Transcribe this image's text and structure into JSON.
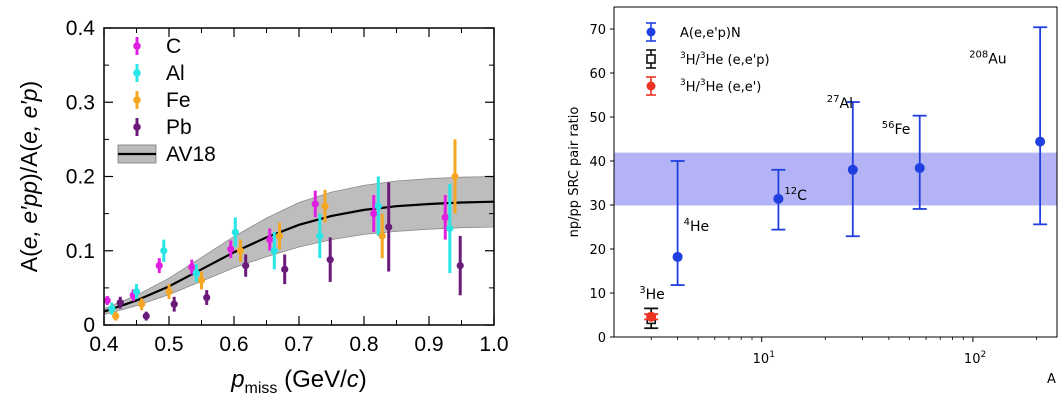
{
  "chart_data": [
    {
      "type": "scatter",
      "title": "",
      "xlabel": {
        "main": "p",
        "sub": "miss",
        "unit": "(GeV/",
        "unit_var": "c",
        "unit_end": ")"
      },
      "ylabel": {
        "p1": "A(",
        "v1": "e, e′pp",
        "p2": ")/A(",
        "v2": "e, e′p",
        "p3": ")"
      },
      "xlim": [
        0.4,
        1.0
      ],
      "ylim": [
        0,
        0.4
      ],
      "xticks": [
        "0.4",
        "0.5",
        "0.6",
        "0.7",
        "0.8",
        "0.9",
        "1.0"
      ],
      "yticks": [
        "0",
        "0.1",
        "0.2",
        "0.3",
        "0.4"
      ],
      "legend_position": "top-left",
      "grid": false,
      "series": [
        {
          "name": "C",
          "color": "#e020e0",
          "points": [
            {
              "x": 0.405,
              "y": 0.033,
              "err": 0.006
            },
            {
              "x": 0.445,
              "y": 0.04,
              "err": 0.008
            },
            {
              "x": 0.485,
              "y": 0.08,
              "err": 0.01
            },
            {
              "x": 0.535,
              "y": 0.078,
              "err": 0.01
            },
            {
              "x": 0.595,
              "y": 0.102,
              "err": 0.012
            },
            {
              "x": 0.655,
              "y": 0.115,
              "err": 0.015
            },
            {
              "x": 0.725,
              "y": 0.163,
              "err": 0.018
            },
            {
              "x": 0.815,
              "y": 0.15,
              "err": 0.025
            },
            {
              "x": 0.925,
              "y": 0.145,
              "err": 0.03
            }
          ]
        },
        {
          "name": "Al",
          "color": "#28e6e6",
          "points": [
            {
              "x": 0.412,
              "y": 0.022,
              "err": 0.008
            },
            {
              "x": 0.45,
              "y": 0.045,
              "err": 0.01
            },
            {
              "x": 0.492,
              "y": 0.1,
              "err": 0.015
            },
            {
              "x": 0.542,
              "y": 0.07,
              "err": 0.012
            },
            {
              "x": 0.602,
              "y": 0.125,
              "err": 0.02
            },
            {
              "x": 0.662,
              "y": 0.1,
              "err": 0.025
            },
            {
              "x": 0.732,
              "y": 0.12,
              "err": 0.03
            },
            {
              "x": 0.822,
              "y": 0.16,
              "err": 0.04
            },
            {
              "x": 0.932,
              "y": 0.13,
              "err": 0.06
            }
          ]
        },
        {
          "name": "Fe",
          "color": "#f5a623",
          "points": [
            {
              "x": 0.418,
              "y": 0.012,
              "err": 0.006
            },
            {
              "x": 0.458,
              "y": 0.028,
              "err": 0.008
            },
            {
              "x": 0.5,
              "y": 0.045,
              "err": 0.01
            },
            {
              "x": 0.55,
              "y": 0.06,
              "err": 0.012
            },
            {
              "x": 0.61,
              "y": 0.1,
              "err": 0.015
            },
            {
              "x": 0.67,
              "y": 0.12,
              "err": 0.018
            },
            {
              "x": 0.74,
              "y": 0.16,
              "err": 0.022
            },
            {
              "x": 0.828,
              "y": 0.12,
              "err": 0.03
            },
            {
              "x": 0.94,
              "y": 0.2,
              "err": 0.05
            }
          ]
        },
        {
          "name": "Pb",
          "color": "#6a1b7a",
          "points": [
            {
              "x": 0.425,
              "y": 0.03,
              "err": 0.008
            },
            {
              "x": 0.465,
              "y": 0.012,
              "err": 0.006
            },
            {
              "x": 0.508,
              "y": 0.028,
              "err": 0.01
            },
            {
              "x": 0.558,
              "y": 0.037,
              "err": 0.01
            },
            {
              "x": 0.618,
              "y": 0.08,
              "err": 0.015
            },
            {
              "x": 0.678,
              "y": 0.075,
              "err": 0.02
            },
            {
              "x": 0.748,
              "y": 0.088,
              "err": 0.03
            },
            {
              "x": 0.838,
              "y": 0.132,
              "err": 0.06
            },
            {
              "x": 0.948,
              "y": 0.08,
              "err": 0.04
            }
          ]
        }
      ],
      "band": {
        "name": "AV18",
        "x": [
          0.4,
          0.45,
          0.5,
          0.55,
          0.6,
          0.65,
          0.7,
          0.75,
          0.8,
          0.85,
          0.9,
          0.95,
          1.0
        ],
        "center": [
          0.018,
          0.033,
          0.052,
          0.075,
          0.098,
          0.118,
          0.135,
          0.147,
          0.155,
          0.16,
          0.163,
          0.165,
          0.166
        ],
        "lower": [
          0.014,
          0.026,
          0.041,
          0.059,
          0.077,
          0.092,
          0.105,
          0.115,
          0.122,
          0.126,
          0.129,
          0.131,
          0.132
        ],
        "upper": [
          0.022,
          0.04,
          0.063,
          0.091,
          0.119,
          0.144,
          0.165,
          0.179,
          0.188,
          0.194,
          0.197,
          0.199,
          0.2
        ],
        "fill_color": "#bdbdbd",
        "line_color": "#000000"
      }
    },
    {
      "type": "scatter",
      "title": "",
      "xlabel": "A",
      "ylabel": "np/pp SRC pair ratio",
      "xscale": "log",
      "xlim": [
        2,
        250
      ],
      "ylim": [
        0,
        75
      ],
      "yticks": [
        "0",
        "10",
        "20",
        "30",
        "40",
        "50",
        "60",
        "70"
      ],
      "xticks": [
        {
          "value": 10,
          "base": "10",
          "exp": "1"
        },
        {
          "value": 100,
          "base": "10",
          "exp": "2"
        }
      ],
      "legend_position": "top-left",
      "grid": false,
      "band": {
        "ylow": 29.9,
        "yhigh": 41.9,
        "color": "#b3b3f6"
      },
      "legend": [
        {
          "key": "aep",
          "pre": "",
          "sup1": "",
          "mid": "",
          "sup2": "",
          "post": "A(e,e'p)N"
        },
        {
          "key": "tri_ep",
          "pre": "",
          "sup1": "3",
          "mid": "H/",
          "sup2": "3",
          "post": "He (e,e'p)"
        },
        {
          "key": "tri_ee",
          "pre": "",
          "sup1": "3",
          "mid": "H/",
          "sup2": "3",
          "post": "He (e,e')"
        }
      ],
      "series": [
        {
          "name": "A(e,e'p)N",
          "color": "#1f3fe0",
          "points": [
            {
              "x": 4,
              "y": 18.2,
              "lo": 11.8,
              "hi": 40.0,
              "label_sup": "4",
              "label": "He"
            },
            {
              "x": 12,
              "y": 31.4,
              "lo": 24.4,
              "hi": 38.0,
              "label_sup": "12",
              "label": "C"
            },
            {
              "x": 27,
              "y": 38.0,
              "lo": 22.9,
              "hi": 53.4,
              "label_sup": "27",
              "label": "Al"
            },
            {
              "x": 56,
              "y": 38.4,
              "lo": 29.1,
              "hi": 50.3,
              "label_sup": "56",
              "label": "Fe"
            },
            {
              "x": 208,
              "y": 44.4,
              "lo": 25.6,
              "hi": 70.4,
              "label_sup": "208",
              "label": "Au"
            }
          ]
        },
        {
          "name": "3H/3He (e,e'p)",
          "color": "#111111",
          "points": [
            {
              "x": 3,
              "y": 4.0,
              "lo": 2.0,
              "hi": 6.5
            }
          ]
        },
        {
          "name": "3H/3He (e,e')",
          "color": "#ee3322",
          "points": [
            {
              "x": 3,
              "y": 4.6,
              "lo": 4.0,
              "hi": 5.2,
              "label_sup": "3",
              "label": "He"
            }
          ]
        }
      ]
    }
  ]
}
